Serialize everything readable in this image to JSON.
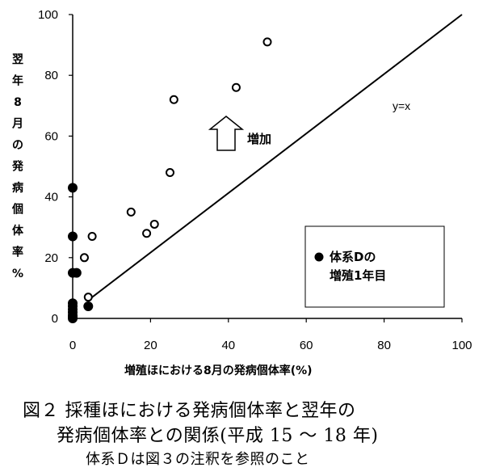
{
  "chart_data": {
    "type": "scatter",
    "xlabel": "増殖ほにおける8月の発病個体率(%)",
    "ylabel": "翌年8月の発病個体率%",
    "xlim": [
      0,
      100
    ],
    "ylim": [
      0,
      100
    ],
    "x_ticks": [
      "0",
      "20",
      "40",
      "60",
      "80",
      "100"
    ],
    "y_ticks": [
      "0",
      "20",
      "40",
      "60",
      "80",
      "100"
    ],
    "series": [
      {
        "name": "体系Dの増殖1年目",
        "marker": "filled-circle",
        "color": "#000000",
        "points": [
          {
            "x": 0,
            "y": 43
          },
          {
            "x": 0,
            "y": 27
          },
          {
            "x": 0,
            "y": 15
          },
          {
            "x": 1,
            "y": 15
          },
          {
            "x": 0,
            "y": 5
          },
          {
            "x": 0,
            "y": 4
          },
          {
            "x": 0,
            "y": 3
          },
          {
            "x": 0,
            "y": 2
          },
          {
            "x": 0,
            "y": 1
          },
          {
            "x": 0,
            "y": 0.5
          },
          {
            "x": 0,
            "y": 0
          },
          {
            "x": 4,
            "y": 4
          }
        ]
      },
      {
        "name": "",
        "marker": "open-circle",
        "color": "#000000",
        "points": [
          {
            "x": 50,
            "y": 91
          },
          {
            "x": 42,
            "y": 76
          },
          {
            "x": 26,
            "y": 72
          },
          {
            "x": 25,
            "y": 48
          },
          {
            "x": 15,
            "y": 35
          },
          {
            "x": 21,
            "y": 31
          },
          {
            "x": 19,
            "y": 28
          },
          {
            "x": 5,
            "y": 27
          },
          {
            "x": 3,
            "y": 20
          },
          {
            "x": 4,
            "y": 7
          }
        ]
      }
    ],
    "reference_line": {
      "label": "y=x",
      "from": [
        4,
        6
      ],
      "to": [
        100,
        100
      ]
    },
    "annotation": {
      "text": "増加",
      "arrow": "up"
    },
    "legend": {
      "placement": "bottom-right",
      "lines": [
        "体系Dの",
        "増殖1年目"
      ]
    }
  },
  "caption": {
    "line1": "図２ 採種ほにおける発病個体率と翌年の",
    "line2": "発病個体率との関係(平成 15 〜 18 年)",
    "line3": "体系Ｄは図３の注釈を参照のこと"
  }
}
